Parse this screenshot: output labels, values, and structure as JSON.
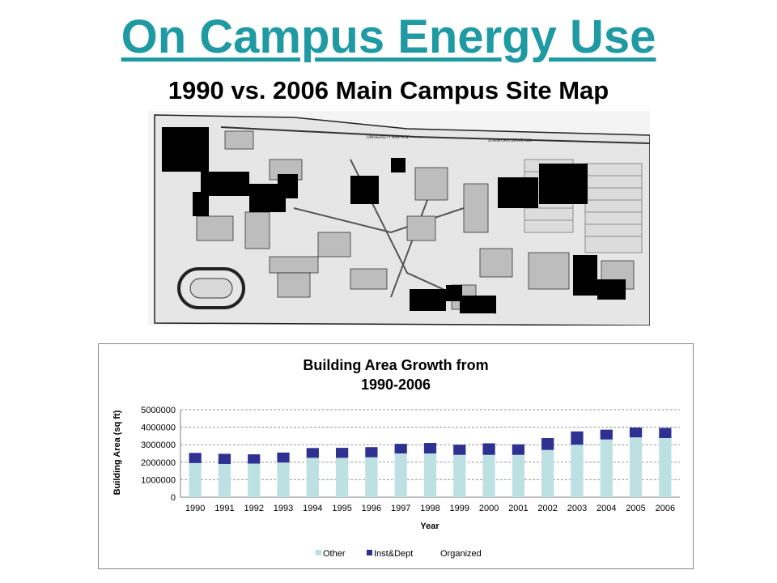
{
  "slide": {
    "title": "On Campus Energy Use",
    "subtitle": "1990 vs. 2006 Main Campus Site Map",
    "title_color": "#1f9aa3"
  },
  "site_map": {
    "description_icon": "campus-site-map-icon",
    "street_labels": [
      "UNIVERSITY AVE N.W.",
      "STANFORD DRIVE N.E."
    ],
    "colors": {
      "map_ink": "#222222",
      "highlight": "#000000",
      "ground": "#e8e8e8"
    }
  },
  "chart_data": {
    "type": "bar",
    "stacked": true,
    "title": "Building Area Growth from 1990-2006",
    "title_lines": [
      "Building Area Growth from",
      "1990-2006"
    ],
    "xlabel": "Year",
    "ylabel": "Building Area (sq ft)",
    "ylim": [
      0,
      5000000
    ],
    "yticks": [
      0,
      1000000,
      2000000,
      3000000,
      4000000,
      5000000
    ],
    "ytick_labels": [
      "0",
      "1000000",
      "2000000",
      "3000000",
      "4000000",
      "5000000"
    ],
    "categories": [
      "1990",
      "1991",
      "1992",
      "1993",
      "1994",
      "1995",
      "1996",
      "1997",
      "1998",
      "1999",
      "2000",
      "2001",
      "2002",
      "2003",
      "2004",
      "2005",
      "2006"
    ],
    "series": [
      {
        "name": "Other",
        "color": "#bde0e3",
        "values": [
          1950000,
          1900000,
          1920000,
          1980000,
          2250000,
          2250000,
          2280000,
          2500000,
          2500000,
          2420000,
          2420000,
          2420000,
          2700000,
          3000000,
          3300000,
          3420000,
          3380000
        ]
      },
      {
        "name": "Inst&Dept",
        "color": "#2e3192",
        "values": [
          580000,
          580000,
          530000,
          570000,
          560000,
          570000,
          580000,
          550000,
          600000,
          580000,
          660000,
          600000,
          680000,
          760000,
          560000,
          560000,
          580000
        ]
      },
      {
        "name": "Organized",
        "color": "#ffffff",
        "values": [
          0,
          0,
          0,
          0,
          0,
          0,
          0,
          0,
          0,
          0,
          0,
          0,
          0,
          0,
          0,
          0,
          0
        ]
      }
    ],
    "grid": true,
    "legend_position": "bottom"
  }
}
